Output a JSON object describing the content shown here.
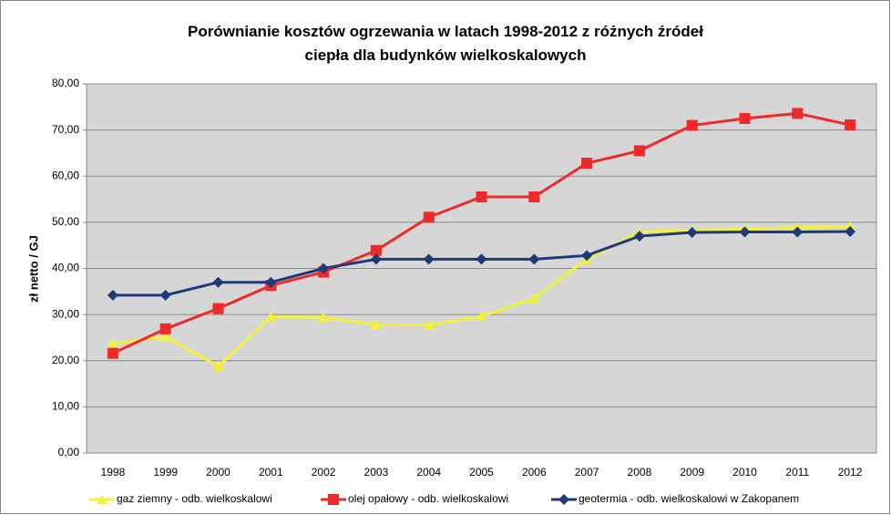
{
  "chart_data": {
    "type": "line",
    "title": "Porównianie kosztów ogrzewania w latach 1998-2012 z różnych źródeł ciepła dla budynków wielkoskalowych",
    "y_label": "zł netto / GJ",
    "categories": [
      "1998",
      "1999",
      "2000",
      "2001",
      "2002",
      "2003",
      "2004",
      "2005",
      "2006",
      "2007",
      "2008",
      "2009",
      "2010",
      "2011",
      "2012"
    ],
    "series": [
      {
        "name": "gaz ziemny - odb. wielkoskalowi",
        "color": "#f2f23a",
        "marker": "triangle",
        "values": [
          23.7,
          25.2,
          18.8,
          29.5,
          29.4,
          27.8,
          27.7,
          29.6,
          33.5,
          42.0,
          47.9,
          48.3,
          48.5,
          48.9,
          49.0
        ]
      },
      {
        "name": "olej opałowy - odb. wielkoskalowi",
        "color": "#ee2a2a",
        "marker": "square",
        "values": [
          21.6,
          26.9,
          31.3,
          36.3,
          39.2,
          43.9,
          51.1,
          55.5,
          55.5,
          62.8,
          65.5,
          71.0,
          72.5,
          73.6,
          71.1
        ]
      },
      {
        "name": "geotermia - odb. wielkoskalowi w Zakopanem",
        "color": "#1f3a7a",
        "marker": "diamond",
        "values": [
          34.2,
          34.2,
          37.0,
          37.0,
          40.0,
          42.0,
          42.0,
          42.0,
          42.0,
          42.8,
          47.0,
          47.8,
          47.9,
          47.9,
          48.0
        ]
      }
    ],
    "ylim": [
      0,
      80
    ],
    "yticks": [
      {
        "value": 0,
        "label": "0,00"
      },
      {
        "value": 10,
        "label": "10,00"
      },
      {
        "value": 20,
        "label": "20,00"
      },
      {
        "value": 30,
        "label": "30,00"
      },
      {
        "value": 40,
        "label": "40,00"
      },
      {
        "value": 50,
        "label": "50,00"
      },
      {
        "value": 60,
        "label": "60,00"
      },
      {
        "value": 70,
        "label": "70,00"
      },
      {
        "value": 80,
        "label": "80,00"
      }
    ],
    "grid": true,
    "legend": "bottom"
  }
}
